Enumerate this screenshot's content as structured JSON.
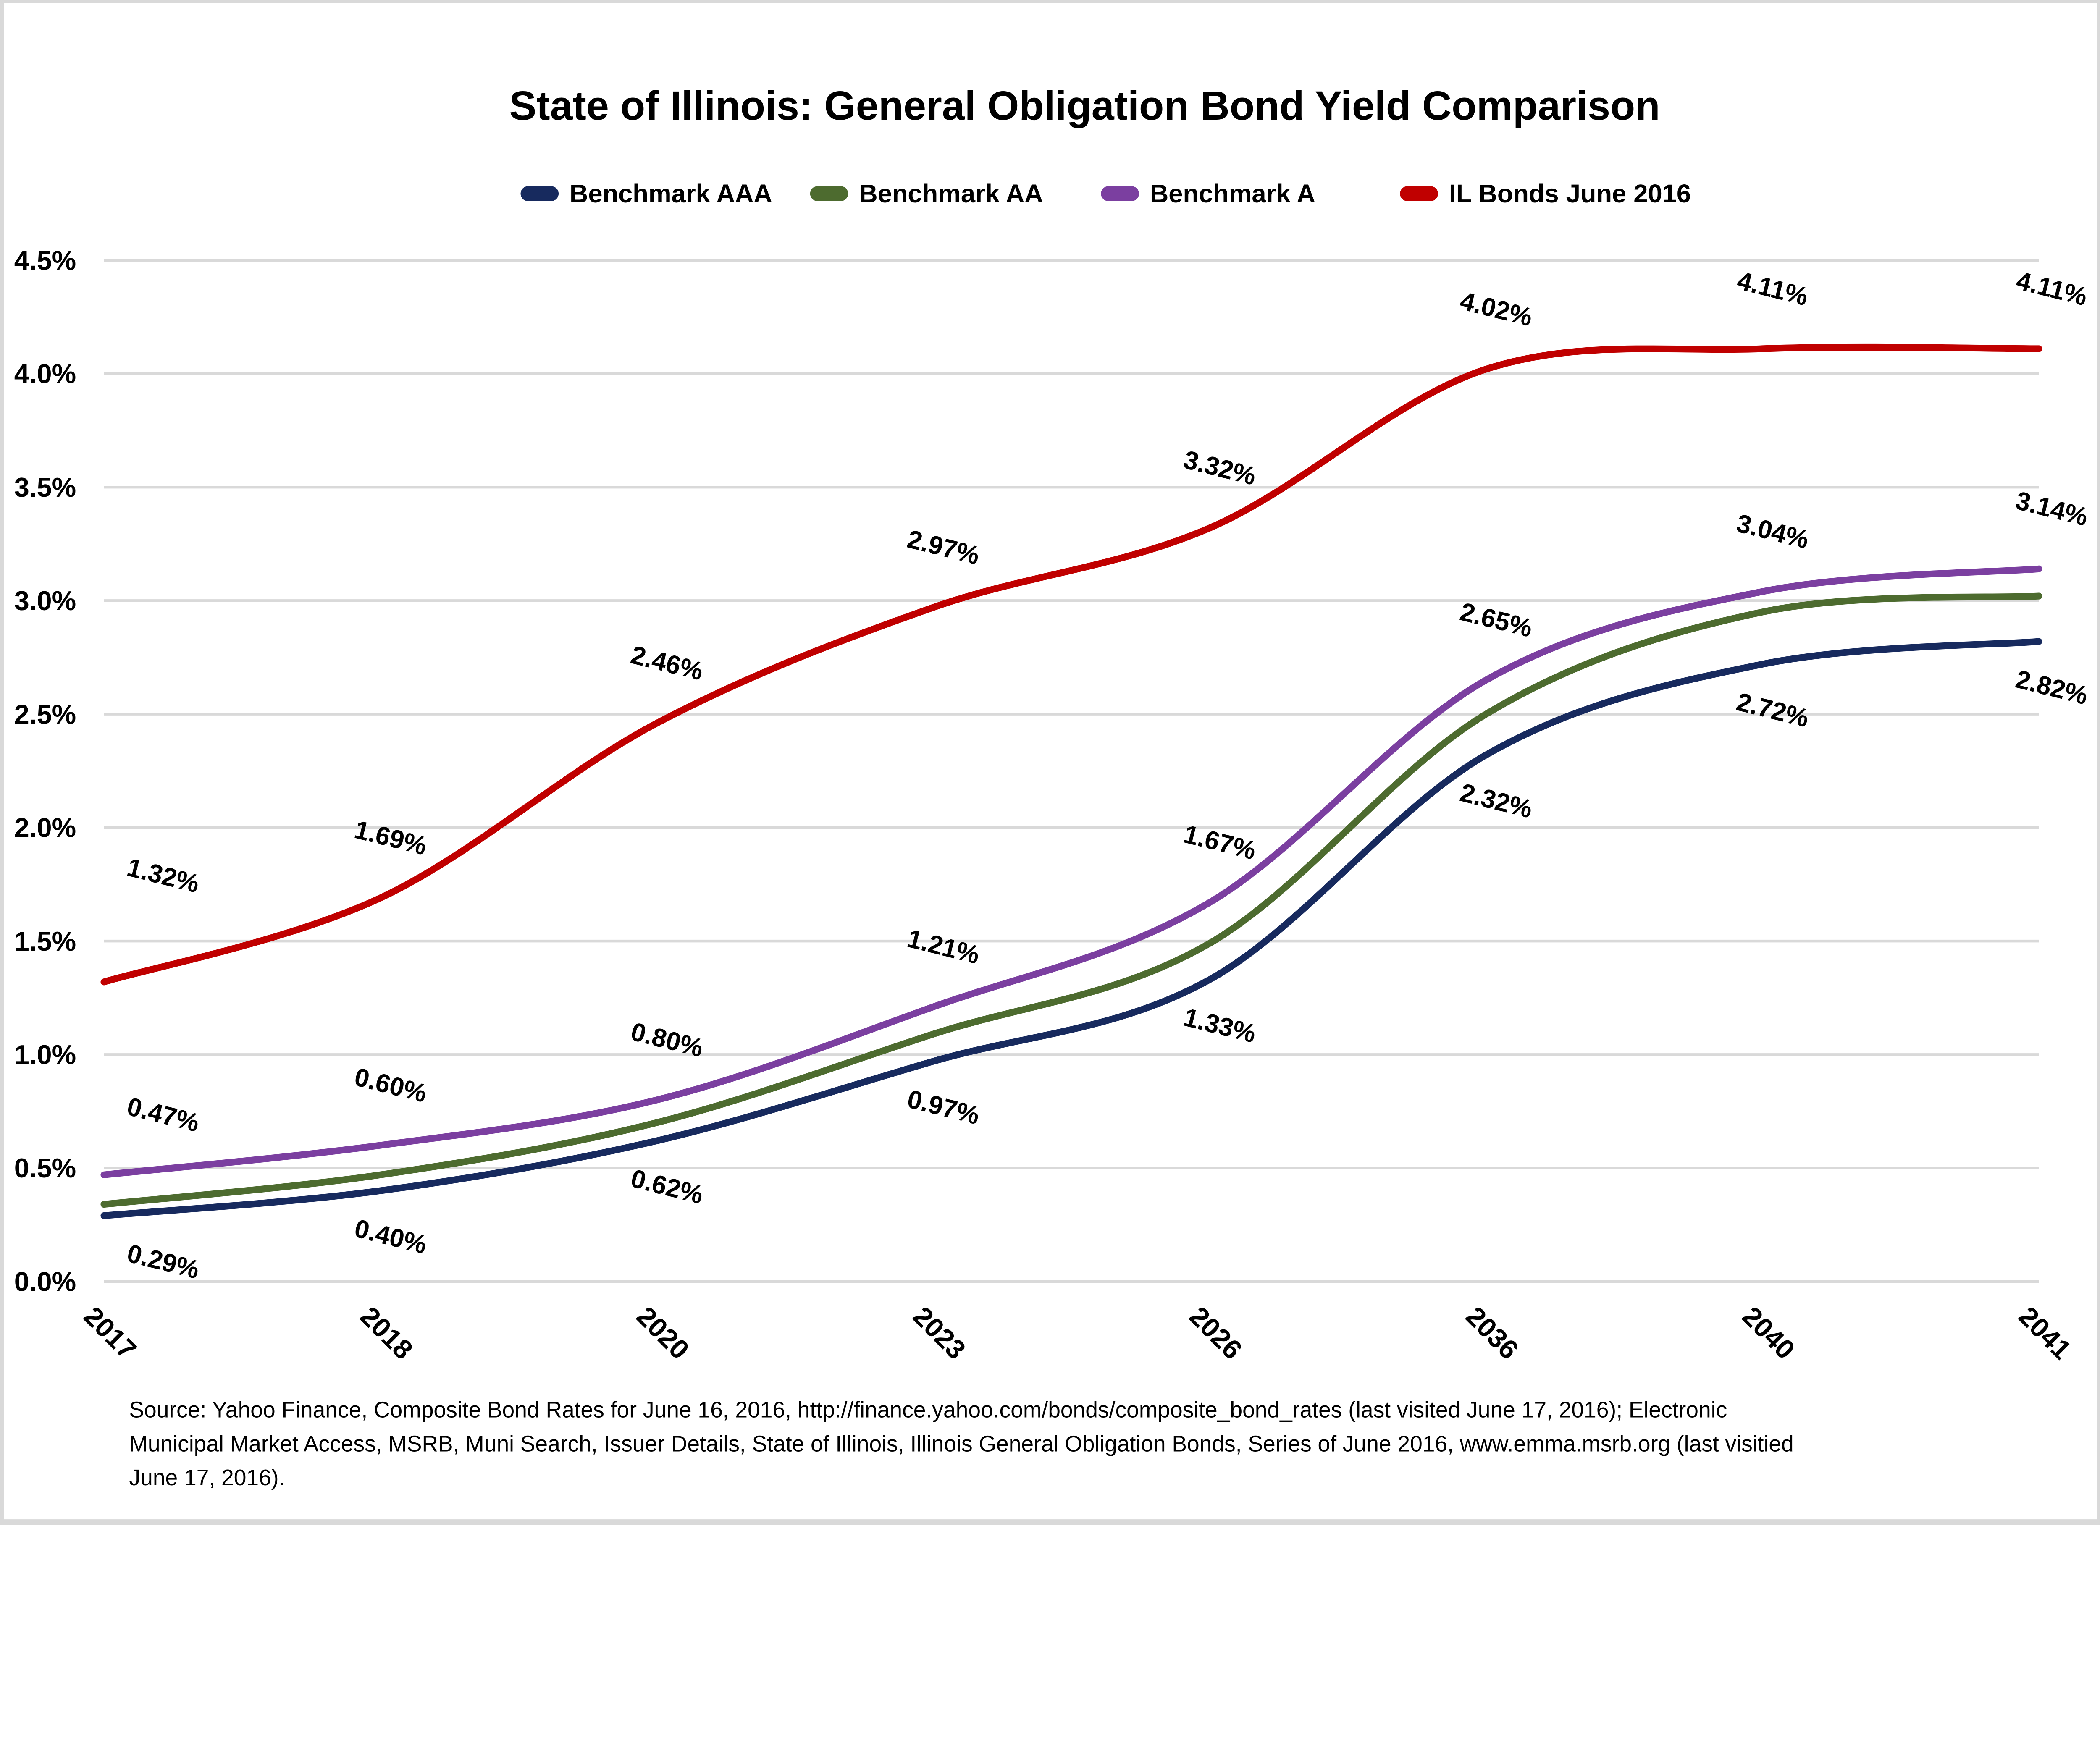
{
  "colors": {
    "background": "#FFFFFF",
    "frame": "#D9D9D9",
    "grid": "#D9D9D9",
    "text": "#000000"
  },
  "chart_data": {
    "type": "line",
    "title": "State of Illinois: General Obligation Bond Yield Comparison",
    "categories": [
      "2017",
      "2018",
      "2020",
      "2023",
      "2026",
      "2036",
      "2040",
      "2041"
    ],
    "xlabel": "",
    "ylabel": "",
    "ylim": [
      0,
      4.5
    ],
    "ytick_step": 0.5,
    "ytick_labels": [
      "0.0%",
      "0.5%",
      "1.0%",
      "1.5%",
      "2.0%",
      "2.5%",
      "3.0%",
      "3.5%",
      "4.0%",
      "4.5%"
    ],
    "grid": true,
    "smoothed_lines": true,
    "legend_position": "top",
    "series": [
      {
        "name": "Benchmark AAA",
        "color": "#172A5E",
        "values": [
          0.29,
          0.4,
          0.62,
          0.97,
          1.33,
          2.32,
          2.72,
          2.82
        ],
        "data_labels": [
          "0.29%",
          "0.40%",
          "0.62%",
          "0.97%",
          "1.33%",
          "2.32%",
          "2.72%",
          "2.82%"
        ],
        "label_position": "below"
      },
      {
        "name": "Benchmark AA",
        "color": "#4D6B2F",
        "values": [
          0.34,
          0.47,
          0.7,
          1.09,
          1.49,
          2.5,
          2.95,
          3.02
        ],
        "data_labels": null,
        "label_position": null
      },
      {
        "name": "Benchmark A",
        "color": "#7B3FA0",
        "values": [
          0.47,
          0.6,
          0.8,
          1.21,
          1.67,
          2.65,
          3.04,
          3.14
        ],
        "data_labels": [
          "0.47%",
          "0.60%",
          "0.80%",
          "1.21%",
          "1.67%",
          "2.65%",
          "3.04%",
          "3.14%"
        ],
        "label_position": "above"
      },
      {
        "name": "IL Bonds June 2016",
        "color": "#C00000",
        "values": [
          1.32,
          1.69,
          2.46,
          2.97,
          3.32,
          4.02,
          4.11,
          4.11
        ],
        "data_labels": [
          "1.32%",
          "1.69%",
          "2.46%",
          "2.97%",
          "3.32%",
          "4.02%",
          "4.11%",
          "4.11%"
        ],
        "label_position": "above"
      }
    ]
  },
  "source": {
    "lines": [
      "Source: Yahoo Finance, Composite Bond Rates for June 16, 2016, http://finance.yahoo.com/bonds/composite_bond_rates (last visited June 17, 2016); Electronic",
      "Municipal Market Access, MSRB, Muni Search, Issuer Details, State of Illinois, Illinois General Obligation Bonds, Series of June 2016, www.emma.msrb.org (last visitied",
      "June 17, 2016)."
    ]
  }
}
